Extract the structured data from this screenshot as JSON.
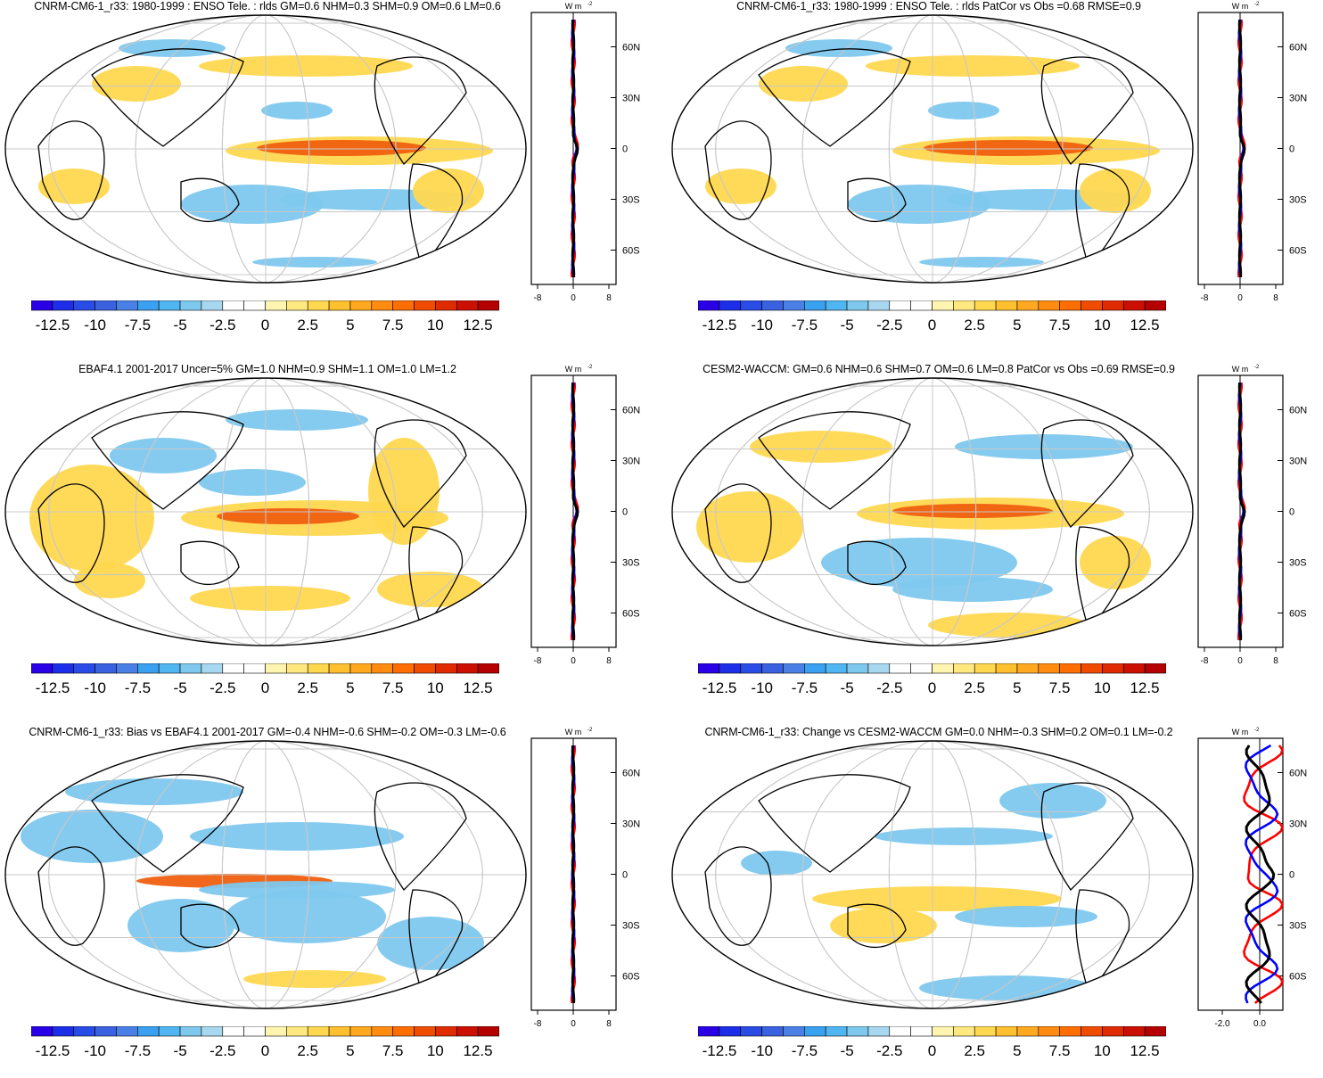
{
  "panels": [
    {
      "id": "p1",
      "title": "CNRM-CM6-1_r33: 1980-1999 : ENSO Tele. : rlds GM=0.6 NHM=0.3 SHM=0.9 OM=0.6 LM=0.6",
      "zonal_unit": "W m",
      "zonal_ticks_x": [
        "-8",
        "0",
        "8"
      ],
      "zonal_ticks_y": [
        "60N",
        "30N",
        "0",
        "30S",
        "60S"
      ]
    },
    {
      "id": "p2",
      "title": "CNRM-CM6-1_r33: 1980-1999 : ENSO Tele. : rlds PatCor vs Obs =0.68 RMSE=0.9",
      "zonal_unit": "W m",
      "zonal_ticks_x": [
        "-8",
        "0",
        "8"
      ],
      "zonal_ticks_y": [
        "60N",
        "30N",
        "0",
        "30S",
        "60S"
      ]
    },
    {
      "id": "p3",
      "title": "EBAF4.1 2001-2017 Uncer=5% GM=1.0 NHM=0.9 SHM=1.1 OM=1.0 LM=1.2",
      "zonal_unit": "W m",
      "zonal_ticks_x": [
        "-8",
        "0",
        "8"
      ],
      "zonal_ticks_y": [
        "60N",
        "30N",
        "0",
        "30S",
        "60S"
      ]
    },
    {
      "id": "p4",
      "title": "CESM2-WACCM: GM=0.6 NHM=0.6 SHM=0.7 OM=0.6 LM=0.8 PatCor vs Obs =0.69 RMSE=0.9",
      "zonal_unit": "W m",
      "zonal_ticks_x": [
        "-8",
        "0",
        "8"
      ],
      "zonal_ticks_y": [
        "60N",
        "30N",
        "0",
        "30S",
        "60S"
      ]
    },
    {
      "id": "p5",
      "title": "CNRM-CM6-1_r33: Bias vs EBAF4.1 2001-2017 GM=-0.4 NHM=-0.6 SHM=-0.2 OM=-0.3 LM=-0.6",
      "zonal_unit": "W m",
      "zonal_ticks_x": [
        "-8",
        "0",
        "8"
      ],
      "zonal_ticks_y": [
        "60N",
        "30N",
        "0",
        "30S",
        "60S"
      ]
    },
    {
      "id": "p6",
      "title": "CNRM-CM6-1_r33: Change vs CESM2-WACCM GM=0.0 NHM=-0.3 SHM=0.2 OM=0.1 LM=-0.2",
      "zonal_unit": "W m",
      "zonal_ticks_x": [
        "-2.0",
        "0.0"
      ],
      "zonal_ticks_y": [
        "60N",
        "30N",
        "0",
        "30S",
        "60S"
      ]
    }
  ],
  "colorbar": {
    "labels": [
      "-12.5",
      "-10",
      "-7.5",
      "-5",
      "-2.5",
      "0",
      "2.5",
      "5",
      "7.5",
      "10",
      "12.5"
    ],
    "colors": [
      "#2a00e6",
      "#1c2ee8",
      "#2a4ce6",
      "#3a62e0",
      "#4a80e6",
      "#3aa0f0",
      "#50b6f2",
      "#7ec8ee",
      "#a8d8f0",
      "#ffffff",
      "#ffffff",
      "#fff4b0",
      "#ffe880",
      "#ffd850",
      "#ffc030",
      "#ffa820",
      "#ff8c10",
      "#ff6e00",
      "#f04c00",
      "#e02a00",
      "#cc1000",
      "#b40000"
    ]
  },
  "colors": {
    "obs": "#ff0000",
    "model": "#0000ff",
    "zonal_main": "#000000",
    "pos": "#ffd850",
    "pos_strong": "#f06010",
    "neg": "#7ec8ee",
    "neg_strong": "#4aa0e6"
  }
}
